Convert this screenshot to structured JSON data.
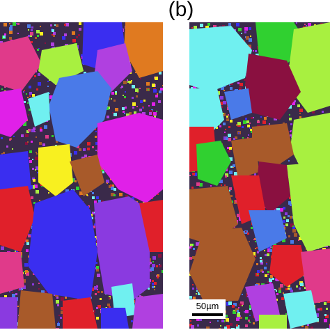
{
  "figure": {
    "label": "(b)"
  },
  "scale_bar": {
    "text": "50µm"
  },
  "colors": {
    "background_noise": "#3a2a4a",
    "magenta": "#e020e8",
    "blue": "#3a2ef0",
    "cornflower": "#4a7ae8",
    "yellow": "#f8f020",
    "purple": "#8a3ae0",
    "brown": "#a85a2a",
    "red": "#e0202a",
    "orange": "#e07a20",
    "cyan": "#70f0f0",
    "green": "#30d030",
    "lime": "#a8f040",
    "maroon": "#8a1040",
    "pink": "#e03a8a",
    "violet": "#b040e0"
  }
}
